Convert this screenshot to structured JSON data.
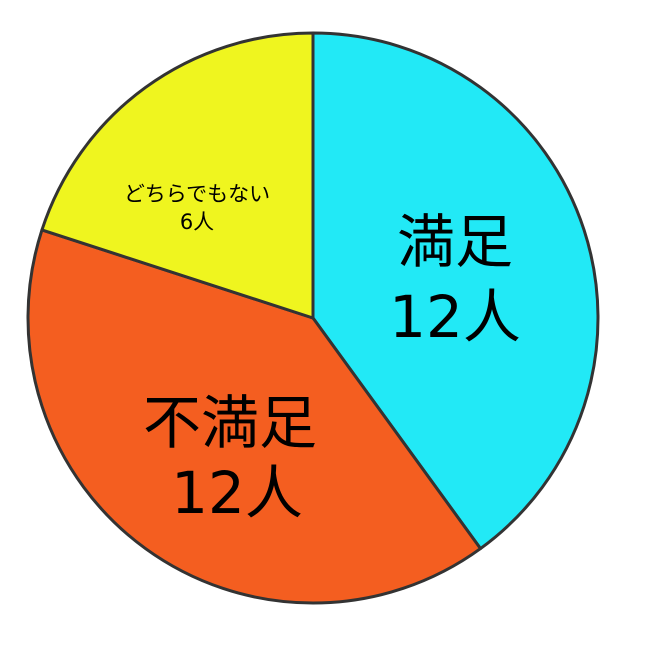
{
  "chart_data": {
    "type": "pie",
    "start_angle": "top",
    "direction": "clockwise",
    "slices": [
      {
        "label": "満足",
        "value": 12,
        "value_label": "12人",
        "color": "#22e9f6"
      },
      {
        "label": "不満足",
        "value": 12,
        "value_label": "12人",
        "color": "#f45e20"
      },
      {
        "label": "どちらでもない",
        "value": 6,
        "value_label": "6人",
        "color": "#eff51f"
      }
    ],
    "legend": "none"
  }
}
